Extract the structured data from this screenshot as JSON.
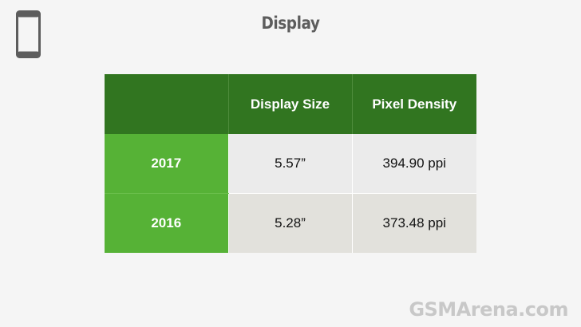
{
  "slide": {
    "title": "Display",
    "icon": "smartphone-icon"
  },
  "table": {
    "headers": [
      "",
      "Display Size",
      "Pixel Density"
    ],
    "rows": [
      {
        "year": "2017",
        "display_size": "5.57”",
        "pixel_density": "394.90 ppi"
      },
      {
        "year": "2016",
        "display_size": "5.28”",
        "pixel_density": "373.48 ppi"
      }
    ]
  },
  "watermark": {
    "text": "GSMArena.com"
  },
  "colors": {
    "header_green": "#317520",
    "row_label_green": "#56b236",
    "cell_light": "#ebebeb",
    "cell_warm": "#e2e1dc",
    "title_gray": "#5d5d5d"
  }
}
